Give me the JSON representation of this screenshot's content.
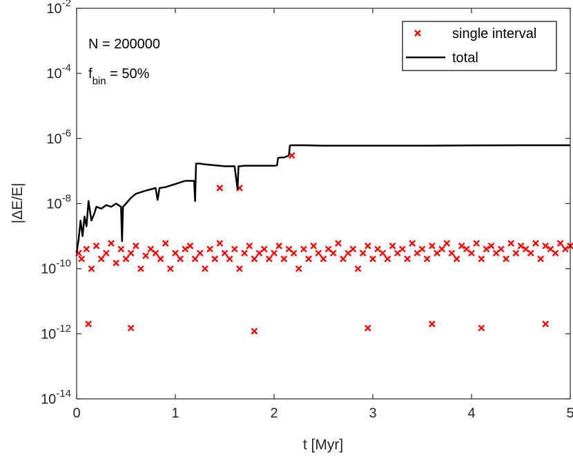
{
  "chart_data": {
    "type": "scatter",
    "xlabel": "t [Myr]",
    "ylabel": "|ΔE/E|",
    "xlim": [
      0,
      5
    ],
    "ylim": [
      1e-14,
      0.01
    ],
    "yscale": "log",
    "grid": false,
    "legend_placement": "top-right",
    "x_ticks": [
      "0",
      "1",
      "2",
      "3",
      "4",
      "5"
    ],
    "y_ticks": [
      {
        "base": "10",
        "exp": "-14"
      },
      {
        "base": "10",
        "exp": "-12"
      },
      {
        "base": "10",
        "exp": "-10"
      },
      {
        "base": "10",
        "exp": "-8"
      },
      {
        "base": "10",
        "exp": "-6"
      },
      {
        "base": "10",
        "exp": "-4"
      },
      {
        "base": "10",
        "exp": "-2"
      }
    ],
    "annotations": {
      "n_text": "N = 200000",
      "fbin_prefix": "f",
      "fbin_sub": "bin",
      "fbin_suffix": " = 50%"
    },
    "series": [
      {
        "name": "single interval",
        "marker": "x",
        "color": "#ff0000",
        "description_values": "dense cloud of points spanning t = 0 to 5 Myr, centered near 3e-10 with spread roughly 1e-12 to 3e-8",
        "x": [
          0.02,
          0.05,
          0.1,
          0.15,
          0.2,
          0.25,
          0.3,
          0.35,
          0.4,
          0.45,
          0.5,
          0.55,
          0.6,
          0.65,
          0.7,
          0.75,
          0.8,
          0.85,
          0.9,
          0.95,
          1.0,
          1.05,
          1.1,
          1.15,
          1.2,
          1.25,
          1.3,
          1.35,
          1.4,
          1.45,
          1.5,
          1.55,
          1.6,
          1.65,
          1.7,
          1.75,
          1.8,
          1.85,
          1.9,
          1.95,
          2.0,
          2.05,
          2.1,
          2.15,
          2.2,
          2.25,
          2.3,
          2.35,
          2.4,
          2.45,
          2.5,
          2.55,
          2.6,
          2.65,
          2.7,
          2.75,
          2.8,
          2.85,
          2.9,
          2.95,
          3.0,
          3.05,
          3.1,
          3.15,
          3.2,
          3.25,
          3.3,
          3.35,
          3.4,
          3.45,
          3.5,
          3.55,
          3.6,
          3.65,
          3.7,
          3.75,
          3.8,
          3.85,
          3.9,
          3.95,
          4.0,
          4.05,
          4.1,
          4.15,
          4.2,
          4.25,
          4.3,
          4.35,
          4.4,
          4.45,
          4.5,
          4.55,
          4.6,
          4.65,
          4.7,
          4.75,
          4.8,
          4.85,
          4.9,
          4.95,
          5.0,
          1.45,
          1.65,
          2.18,
          0.12,
          0.55,
          1.8,
          2.95,
          3.6,
          4.1,
          4.75
        ],
        "y": [
          3e-10,
          2e-10,
          4e-10,
          1e-10,
          5e-10,
          2e-10,
          3e-10,
          6e-10,
          1.5e-10,
          4e-10,
          2e-10,
          3e-10,
          5e-10,
          1e-10,
          2.5e-10,
          4e-10,
          3e-10,
          2e-10,
          6e-10,
          1e-10,
          3e-10,
          2e-10,
          4e-10,
          5e-10,
          2e-10,
          3e-10,
          1e-10,
          4e-10,
          2e-10,
          6e-10,
          3e-10,
          2e-10,
          4e-10,
          1e-10,
          3e-10,
          5e-10,
          2e-10,
          3e-10,
          4e-10,
          2e-10,
          3e-10,
          5e-10,
          2e-10,
          4e-10,
          3e-10,
          1e-10,
          4e-10,
          2e-10,
          5e-10,
          3e-10,
          2e-10,
          4e-10,
          3e-10,
          6e-10,
          2e-10,
          3e-10,
          4e-10,
          1e-10,
          3e-10,
          5e-10,
          2e-10,
          4e-10,
          3e-10,
          2e-10,
          5e-10,
          3e-10,
          4e-10,
          2e-10,
          6e-10,
          3e-10,
          4e-10,
          2e-10,
          5e-10,
          3e-10,
          4e-10,
          6e-10,
          3e-10,
          2e-10,
          5e-10,
          4e-10,
          3e-10,
          6e-10,
          2e-10,
          4e-10,
          5e-10,
          3e-10,
          4e-10,
          2e-10,
          6e-10,
          3e-10,
          5e-10,
          4e-10,
          3e-10,
          6e-10,
          2e-10,
          5e-10,
          4e-10,
          3e-10,
          6e-10,
          4e-10,
          5e-10,
          3e-08,
          3e-08,
          3e-07,
          2e-12,
          1.5e-12,
          1.2e-12,
          1.5e-12,
          2e-12,
          1.5e-12,
          2e-12
        ]
      },
      {
        "name": "total",
        "marker": "line",
        "color": "#000000",
        "x": [
          0.0,
          0.02,
          0.04,
          0.06,
          0.08,
          0.1,
          0.12,
          0.15,
          0.18,
          0.2,
          0.25,
          0.3,
          0.35,
          0.4,
          0.45,
          0.46,
          0.47,
          0.5,
          0.55,
          0.6,
          0.7,
          0.8,
          0.82,
          0.84,
          0.9,
          1.0,
          1.1,
          1.19,
          1.2,
          1.21,
          1.25,
          1.3,
          1.4,
          1.5,
          1.6,
          1.63,
          1.64,
          1.65,
          1.7,
          1.8,
          1.9,
          2.0,
          2.03,
          2.04,
          2.06,
          2.1,
          2.15,
          2.16,
          2.17,
          2.2,
          2.3,
          2.5,
          3.0,
          3.5,
          4.0,
          4.5,
          5.0
        ],
        "y": [
          3e-10,
          8e-10,
          3e-09,
          1e-09,
          4e-09,
          2e-09,
          1.2e-08,
          3e-09,
          5e-09,
          8e-09,
          7e-09,
          9e-09,
          8e-09,
          1e-08,
          8e-09,
          7e-10,
          8e-09,
          1e-08,
          1.5e-08,
          2e-08,
          2.5e-08,
          3e-08,
          1.3e-08,
          3e-08,
          3.2e-08,
          4e-08,
          5e-08,
          5e-08,
          1.2e-08,
          1.7e-07,
          1.7e-07,
          1.6e-07,
          1.5e-07,
          1.4e-07,
          1.4e-07,
          2.8e-08,
          1.4e-07,
          1.4e-07,
          1.45e-07,
          1.45e-07,
          1.45e-07,
          1.45e-07,
          1.5e-07,
          2.5e-07,
          2.6e-07,
          2.6e-07,
          3e-07,
          6e-07,
          6.2e-07,
          6.2e-07,
          6.2e-07,
          6e-07,
          6e-07,
          6e-07,
          6.1e-07,
          6.2e-07,
          6.2e-07
        ]
      }
    ]
  }
}
